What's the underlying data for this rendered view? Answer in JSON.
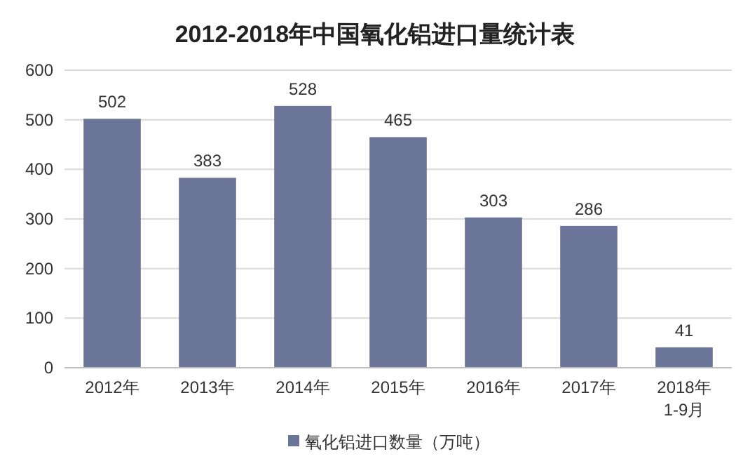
{
  "chart_data": {
    "type": "bar",
    "title": "2012-2018年中国氧化铝进口量统计表",
    "categories": [
      "2012年",
      "2013年",
      "2014年",
      "2015年",
      "2016年",
      "2017年",
      "2018年\n1-9月"
    ],
    "series": [
      {
        "name": "氧化铝进口数量（万吨）",
        "color": "#6b7499",
        "values": [
          502,
          383,
          528,
          465,
          303,
          286,
          41
        ]
      }
    ],
    "ylim": [
      0,
      600
    ],
    "yticks": [
      0,
      100,
      200,
      300,
      400,
      500,
      600
    ],
    "grid": "y",
    "legend": "bottom",
    "data_labels": true
  }
}
